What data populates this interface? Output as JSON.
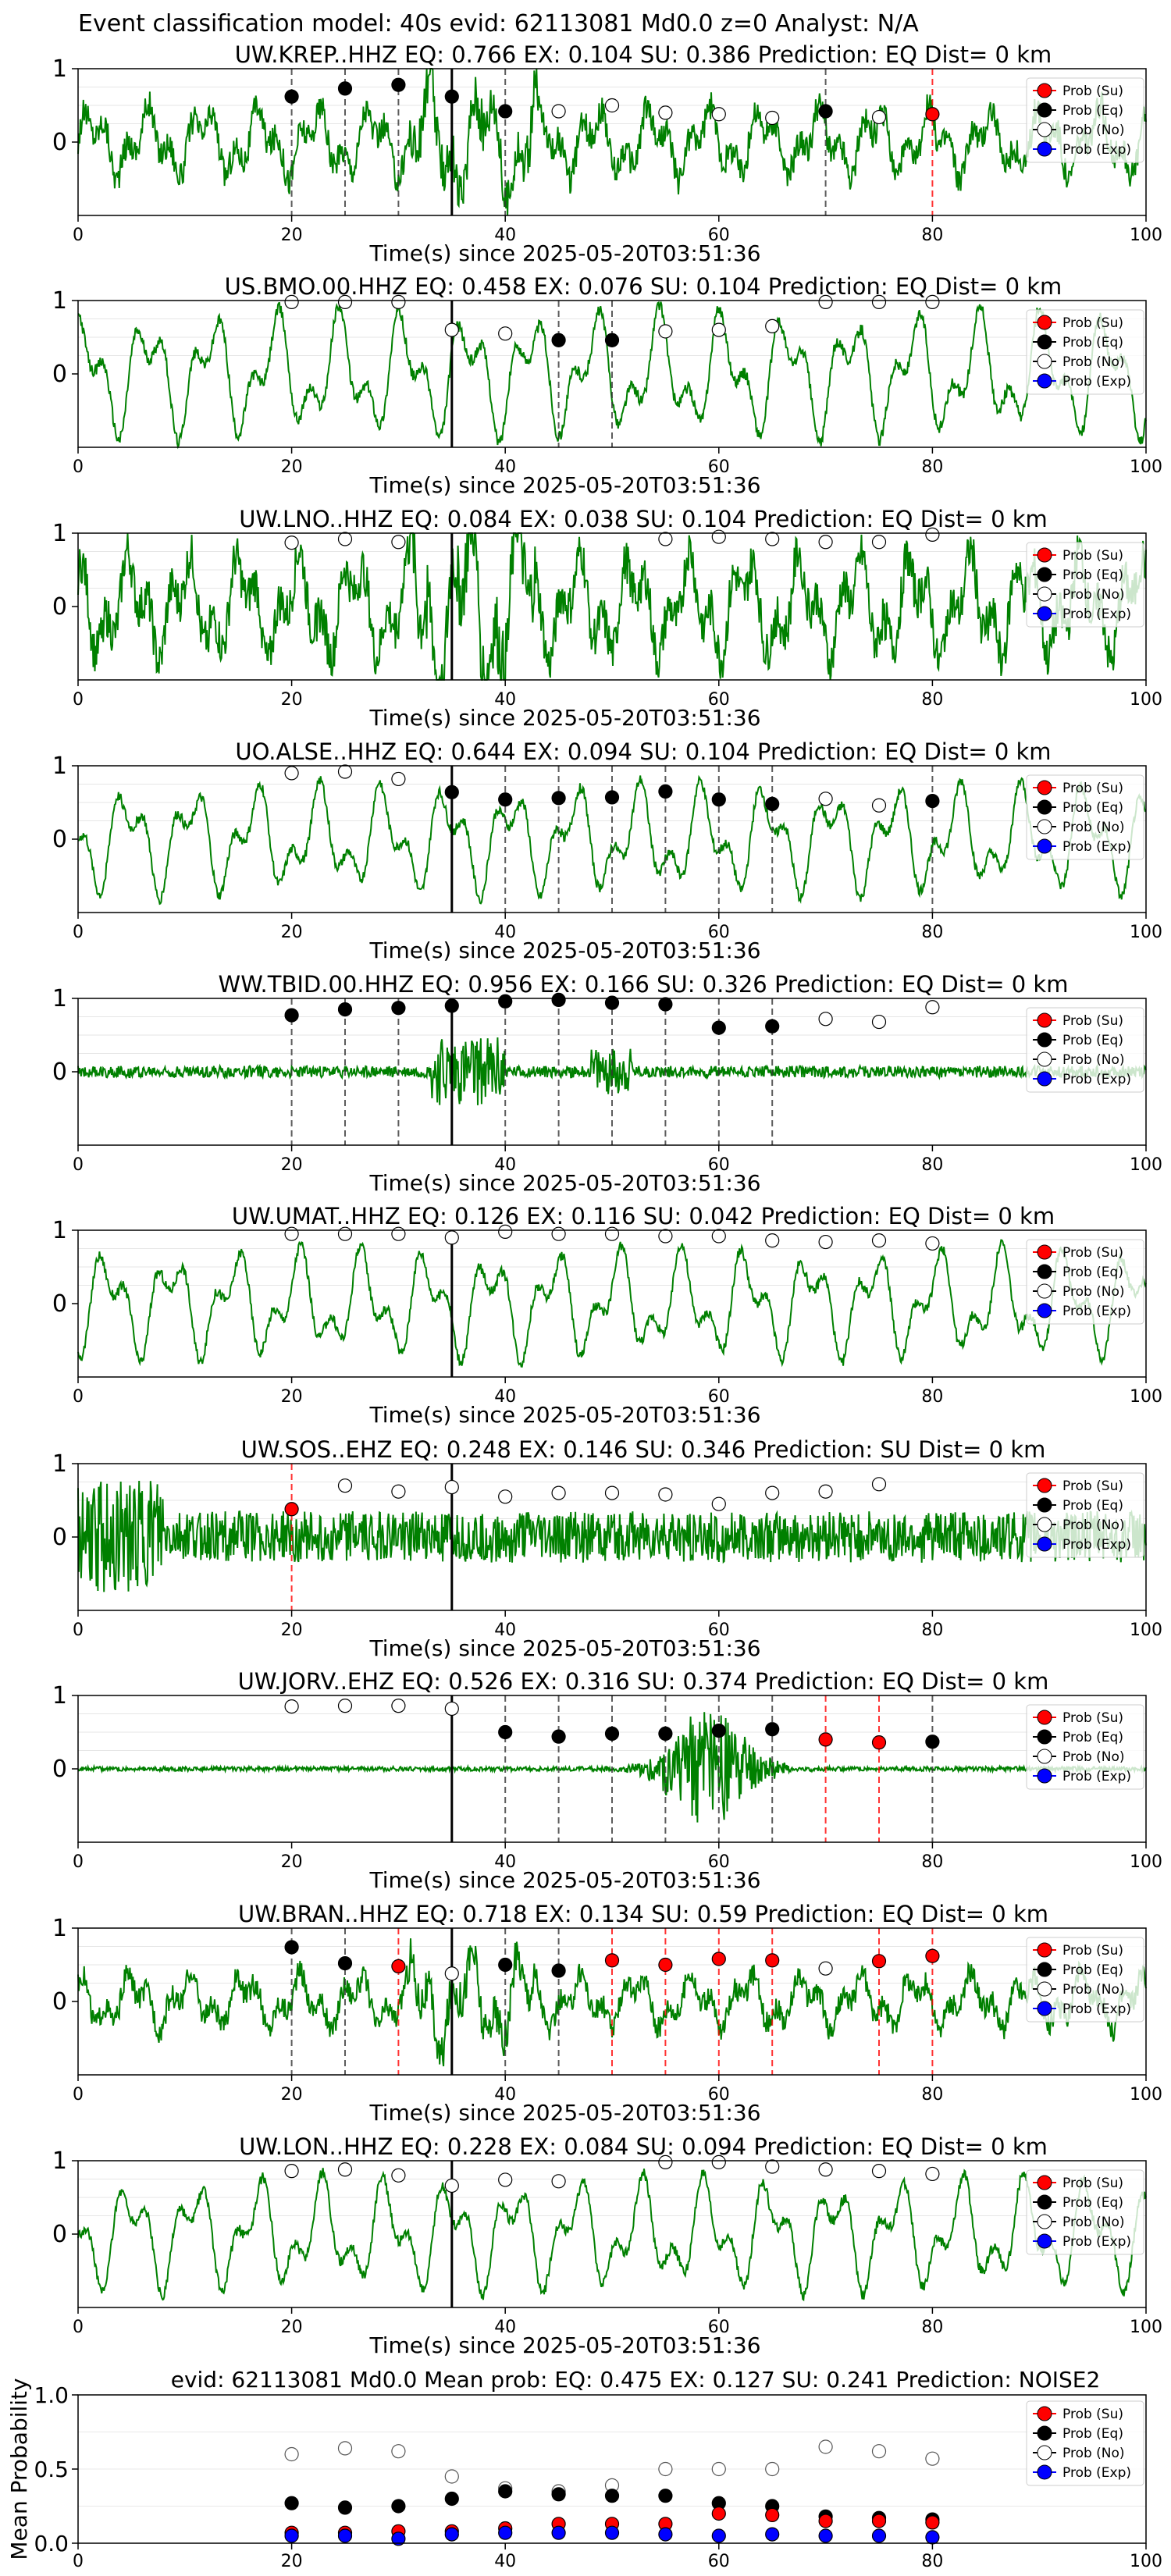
{
  "figure": {
    "title": "Event classification model: 40s evid: 62113081 Md0.0 z=0 Analyst: N/A",
    "legend_labels": [
      "Prob (Su)",
      "Prob (Eq)",
      "Prob (No)",
      "Prob (Exp)"
    ],
    "colors": {
      "su": "#ff0000",
      "eq": "#000000",
      "no": "#ffffff",
      "exp": "#0000ff",
      "wave": "#008000",
      "pick": "#000000"
    }
  },
  "chart_data": [
    {
      "type": "line",
      "title": "UW.KREP..HHZ   EQ: 0.766  EX: 0.104  SU: 0.386   Prediction: EQ    Dist= 0 km",
      "xlabel": "Time(s) since 2025-05-20T03:51:36",
      "xlim": [
        0,
        100
      ],
      "ylim": [
        -1,
        1
      ],
      "yticks": [
        "1",
        "0"
      ],
      "xticks": [
        "0",
        "20",
        "40",
        "60",
        "80",
        "100"
      ],
      "pick_time": 35,
      "wave_style": "mixed",
      "amp": 0.5,
      "points": [
        {
          "t": 20,
          "c": "Eq",
          "p": 0.62
        },
        {
          "t": 25,
          "c": "Eq",
          "p": 0.73
        },
        {
          "t": 30,
          "c": "Eq",
          "p": 0.78
        },
        {
          "t": 35,
          "c": "Eq",
          "p": 0.62
        },
        {
          "t": 40,
          "c": "Eq",
          "p": 0.42
        },
        {
          "t": 45,
          "c": "No",
          "p": 0.42
        },
        {
          "t": 50,
          "c": "No",
          "p": 0.5
        },
        {
          "t": 55,
          "c": "No",
          "p": 0.4
        },
        {
          "t": 60,
          "c": "No",
          "p": 0.38
        },
        {
          "t": 65,
          "c": "No",
          "p": 0.33
        },
        {
          "t": 70,
          "c": "Eq",
          "p": 0.42
        },
        {
          "t": 75,
          "c": "No",
          "p": 0.34
        },
        {
          "t": 80,
          "c": "Su",
          "p": 0.38
        }
      ]
    },
    {
      "type": "line",
      "title": "US.BMO.00.HHZ   EQ: 0.458  EX: 0.076  SU: 0.104   Prediction: EQ    Dist= 0 km",
      "xlabel": "Time(s) since 2025-05-20T03:51:36",
      "xlim": [
        0,
        100
      ],
      "ylim": [
        -1,
        1
      ],
      "yticks": [
        "1",
        "0"
      ],
      "xticks": [
        "0",
        "20",
        "40",
        "60",
        "80",
        "100"
      ],
      "pick_time": 35,
      "wave_style": "smooth",
      "amp": 0.8,
      "points": [
        {
          "t": 20,
          "c": "No",
          "p": 0.98
        },
        {
          "t": 25,
          "c": "No",
          "p": 0.98
        },
        {
          "t": 30,
          "c": "No",
          "p": 0.98
        },
        {
          "t": 35,
          "c": "No",
          "p": 0.6
        },
        {
          "t": 40,
          "c": "No",
          "p": 0.55
        },
        {
          "t": 45,
          "c": "Eq",
          "p": 0.46
        },
        {
          "t": 50,
          "c": "Eq",
          "p": 0.46
        },
        {
          "t": 55,
          "c": "No",
          "p": 0.58
        },
        {
          "t": 60,
          "c": "No",
          "p": 0.6
        },
        {
          "t": 65,
          "c": "No",
          "p": 0.65
        },
        {
          "t": 70,
          "c": "No",
          "p": 0.98
        },
        {
          "t": 75,
          "c": "No",
          "p": 0.98
        },
        {
          "t": 80,
          "c": "No",
          "p": 0.98
        }
      ]
    },
    {
      "type": "line",
      "title": "UW.LNO..HHZ   EQ: 0.084  EX: 0.038  SU: 0.104   Prediction: EQ    Dist= 0 km",
      "xlabel": "Time(s) since 2025-05-20T03:51:36",
      "xlim": [
        0,
        100
      ],
      "ylim": [
        -1,
        1
      ],
      "yticks": [
        "1",
        "0"
      ],
      "xticks": [
        "0",
        "20",
        "40",
        "60",
        "80",
        "100"
      ],
      "pick_time": 35,
      "wave_style": "mixed",
      "amp": 0.75,
      "points": [
        {
          "t": 20,
          "c": "No",
          "p": 0.87
        },
        {
          "t": 25,
          "c": "No",
          "p": 0.92
        },
        {
          "t": 30,
          "c": "No",
          "p": 0.88
        },
        {
          "t": 55,
          "c": "No",
          "p": 0.92
        },
        {
          "t": 60,
          "c": "No",
          "p": 0.95
        },
        {
          "t": 65,
          "c": "No",
          "p": 0.92
        },
        {
          "t": 70,
          "c": "No",
          "p": 0.88
        },
        {
          "t": 75,
          "c": "No",
          "p": 0.88
        },
        {
          "t": 80,
          "c": "No",
          "p": 0.98
        }
      ]
    },
    {
      "type": "line",
      "title": "UO.ALSE..HHZ   EQ: 0.644  EX: 0.094  SU: 0.104   Prediction: EQ    Dist= 0 km",
      "xlabel": "Time(s) since 2025-05-20T03:51:36",
      "xlim": [
        0,
        100
      ],
      "ylim": [
        -1,
        1
      ],
      "yticks": [
        "1",
        "0"
      ],
      "xticks": [
        "0",
        "20",
        "40",
        "60",
        "80",
        "100"
      ],
      "pick_time": 35,
      "wave_style": "smooth",
      "amp": 0.7,
      "points": [
        {
          "t": 20,
          "c": "No",
          "p": 0.9
        },
        {
          "t": 25,
          "c": "No",
          "p": 0.92
        },
        {
          "t": 30,
          "c": "No",
          "p": 0.82
        },
        {
          "t": 35,
          "c": "Eq",
          "p": 0.64
        },
        {
          "t": 40,
          "c": "Eq",
          "p": 0.54
        },
        {
          "t": 45,
          "c": "Eq",
          "p": 0.56
        },
        {
          "t": 50,
          "c": "Eq",
          "p": 0.57
        },
        {
          "t": 55,
          "c": "Eq",
          "p": 0.65
        },
        {
          "t": 60,
          "c": "Eq",
          "p": 0.54
        },
        {
          "t": 65,
          "c": "Eq",
          "p": 0.48
        },
        {
          "t": 70,
          "c": "No",
          "p": 0.55
        },
        {
          "t": 75,
          "c": "No",
          "p": 0.46
        },
        {
          "t": 80,
          "c": "Eq",
          "p": 0.52
        }
      ]
    },
    {
      "type": "line",
      "title": "WW.TBID.00.HHZ   EQ: 0.956  EX: 0.166  SU: 0.326   Prediction: EQ    Dist= 0 km",
      "xlabel": "Time(s) since 2025-05-20T03:51:36",
      "xlim": [
        0,
        100
      ],
      "ylim": [
        -1,
        1
      ],
      "yticks": [
        "1",
        "0"
      ],
      "xticks": [
        "0",
        "20",
        "40",
        "60",
        "80",
        "100"
      ],
      "pick_time": 35,
      "wave_style": "quiet",
      "amp": 0.08,
      "points": [
        {
          "t": 20,
          "c": "Eq",
          "p": 0.77
        },
        {
          "t": 25,
          "c": "Eq",
          "p": 0.85
        },
        {
          "t": 30,
          "c": "Eq",
          "p": 0.87
        },
        {
          "t": 35,
          "c": "Eq",
          "p": 0.9
        },
        {
          "t": 40,
          "c": "Eq",
          "p": 0.96
        },
        {
          "t": 45,
          "c": "Eq",
          "p": 0.98
        },
        {
          "t": 50,
          "c": "Eq",
          "p": 0.94
        },
        {
          "t": 55,
          "c": "Eq",
          "p": 0.92
        },
        {
          "t": 60,
          "c": "Eq",
          "p": 0.6
        },
        {
          "t": 65,
          "c": "Eq",
          "p": 0.62
        },
        {
          "t": 70,
          "c": "No",
          "p": 0.72
        },
        {
          "t": 75,
          "c": "No",
          "p": 0.68
        },
        {
          "t": 80,
          "c": "No",
          "p": 0.88
        }
      ]
    },
    {
      "type": "line",
      "title": "UW.UMAT..HHZ   EQ: 0.126  EX: 0.116  SU: 0.042   Prediction: EQ    Dist= 0 km",
      "xlabel": "Time(s) since 2025-05-20T03:51:36",
      "xlim": [
        0,
        100
      ],
      "ylim": [
        -1,
        1
      ],
      "yticks": [
        "1",
        "0"
      ],
      "xticks": [
        "0",
        "20",
        "40",
        "60",
        "80",
        "100"
      ],
      "pick_time": 35,
      "wave_style": "smooth",
      "amp": 0.7,
      "points": [
        {
          "t": 20,
          "c": "No",
          "p": 0.95
        },
        {
          "t": 25,
          "c": "No",
          "p": 0.95
        },
        {
          "t": 30,
          "c": "No",
          "p": 0.95
        },
        {
          "t": 35,
          "c": "No",
          "p": 0.9
        },
        {
          "t": 40,
          "c": "No",
          "p": 0.98
        },
        {
          "t": 45,
          "c": "No",
          "p": 0.95
        },
        {
          "t": 50,
          "c": "No",
          "p": 0.95
        },
        {
          "t": 55,
          "c": "No",
          "p": 0.92
        },
        {
          "t": 60,
          "c": "No",
          "p": 0.92
        },
        {
          "t": 65,
          "c": "No",
          "p": 0.86
        },
        {
          "t": 70,
          "c": "No",
          "p": 0.84
        },
        {
          "t": 75,
          "c": "No",
          "p": 0.86
        },
        {
          "t": 80,
          "c": "No",
          "p": 0.82
        }
      ]
    },
    {
      "type": "line",
      "title": "UW.SOS..EHZ   EQ: 0.248  EX: 0.146  SU: 0.346   Prediction: SU    Dist= 0 km",
      "xlabel": "Time(s) since 2025-05-20T03:51:36",
      "xlim": [
        0,
        100
      ],
      "ylim": [
        -1,
        1
      ],
      "yticks": [
        "1",
        "0"
      ],
      "xticks": [
        "0",
        "20",
        "40",
        "60",
        "80",
        "100"
      ],
      "pick_time": 35,
      "wave_style": "noise",
      "amp": 0.35,
      "points": [
        {
          "t": 20,
          "c": "Su",
          "p": 0.38
        },
        {
          "t": 25,
          "c": "No",
          "p": 0.7
        },
        {
          "t": 30,
          "c": "No",
          "p": 0.62
        },
        {
          "t": 35,
          "c": "No",
          "p": 0.68
        },
        {
          "t": 40,
          "c": "No",
          "p": 0.55
        },
        {
          "t": 45,
          "c": "No",
          "p": 0.6
        },
        {
          "t": 50,
          "c": "No",
          "p": 0.6
        },
        {
          "t": 55,
          "c": "No",
          "p": 0.58
        },
        {
          "t": 60,
          "c": "No",
          "p": 0.45
        },
        {
          "t": 65,
          "c": "No",
          "p": 0.6
        },
        {
          "t": 70,
          "c": "No",
          "p": 0.62
        },
        {
          "t": 75,
          "c": "No",
          "p": 0.72
        }
      ]
    },
    {
      "type": "line",
      "title": "UW.JORV..EHZ   EQ: 0.526  EX: 0.316  SU: 0.374   Prediction: EQ    Dist= 0 km",
      "xlabel": "Time(s) since 2025-05-20T03:51:36",
      "xlim": [
        0,
        100
      ],
      "ylim": [
        -1,
        1
      ],
      "yticks": [
        "1",
        "0"
      ],
      "xticks": [
        "0",
        "20",
        "40",
        "60",
        "80",
        "100"
      ],
      "pick_time": 35,
      "wave_style": "burst",
      "amp": 0.03,
      "points": [
        {
          "t": 20,
          "c": "No",
          "p": 0.85
        },
        {
          "t": 25,
          "c": "No",
          "p": 0.86
        },
        {
          "t": 30,
          "c": "No",
          "p": 0.86
        },
        {
          "t": 35,
          "c": "No",
          "p": 0.82
        },
        {
          "t": 40,
          "c": "Eq",
          "p": 0.5
        },
        {
          "t": 45,
          "c": "Eq",
          "p": 0.44
        },
        {
          "t": 50,
          "c": "Eq",
          "p": 0.48
        },
        {
          "t": 55,
          "c": "Eq",
          "p": 0.48
        },
        {
          "t": 60,
          "c": "Eq",
          "p": 0.52
        },
        {
          "t": 65,
          "c": "Eq",
          "p": 0.54
        },
        {
          "t": 70,
          "c": "Su",
          "p": 0.4
        },
        {
          "t": 75,
          "c": "Su",
          "p": 0.36
        },
        {
          "t": 80,
          "c": "Eq",
          "p": 0.37
        }
      ]
    },
    {
      "type": "line",
      "title": "UW.BRAN..HHZ   EQ: 0.718  EX: 0.134  SU: 0.59   Prediction: EQ    Dist= 0 km",
      "xlabel": "Time(s) since 2025-05-20T03:51:36",
      "xlim": [
        0,
        100
      ],
      "ylim": [
        -1,
        1
      ],
      "yticks": [
        "1",
        "0"
      ],
      "xticks": [
        "0",
        "20",
        "40",
        "60",
        "80",
        "100"
      ],
      "pick_time": 35,
      "wave_style": "mixed",
      "amp": 0.4,
      "points": [
        {
          "t": 20,
          "c": "Eq",
          "p": 0.74
        },
        {
          "t": 25,
          "c": "Eq",
          "p": 0.52
        },
        {
          "t": 30,
          "c": "Su",
          "p": 0.48
        },
        {
          "t": 35,
          "c": "No",
          "p": 0.38
        },
        {
          "t": 40,
          "c": "Eq",
          "p": 0.5
        },
        {
          "t": 45,
          "c": "Eq",
          "p": 0.42
        },
        {
          "t": 50,
          "c": "Su",
          "p": 0.56
        },
        {
          "t": 55,
          "c": "Su",
          "p": 0.5
        },
        {
          "t": 60,
          "c": "Su",
          "p": 0.58
        },
        {
          "t": 65,
          "c": "Su",
          "p": 0.56
        },
        {
          "t": 70,
          "c": "No",
          "p": 0.45
        },
        {
          "t": 75,
          "c": "Su",
          "p": 0.55
        },
        {
          "t": 80,
          "c": "Su",
          "p": 0.62
        }
      ]
    },
    {
      "type": "line",
      "title": "UW.LON..HHZ   EQ: 0.228  EX: 0.084  SU: 0.094   Prediction: EQ    Dist= 0 km",
      "xlabel": "Time(s) since 2025-05-20T03:51:36",
      "xlim": [
        0,
        100
      ],
      "ylim": [
        -1,
        1
      ],
      "yticks": [
        "1",
        "0"
      ],
      "xticks": [
        "0",
        "20",
        "40",
        "60",
        "80",
        "100"
      ],
      "pick_time": 35,
      "wave_style": "smooth",
      "amp": 0.72,
      "points": [
        {
          "t": 20,
          "c": "No",
          "p": 0.86
        },
        {
          "t": 25,
          "c": "No",
          "p": 0.88
        },
        {
          "t": 30,
          "c": "No",
          "p": 0.8
        },
        {
          "t": 35,
          "c": "No",
          "p": 0.66
        },
        {
          "t": 40,
          "c": "No",
          "p": 0.74
        },
        {
          "t": 45,
          "c": "No",
          "p": 0.72
        },
        {
          "t": 55,
          "c": "No",
          "p": 0.98
        },
        {
          "t": 60,
          "c": "No",
          "p": 0.98
        },
        {
          "t": 65,
          "c": "No",
          "p": 0.92
        },
        {
          "t": 70,
          "c": "No",
          "p": 0.88
        },
        {
          "t": 75,
          "c": "No",
          "p": 0.86
        },
        {
          "t": 80,
          "c": "No",
          "p": 0.82
        }
      ]
    },
    {
      "type": "scatter",
      "title": "evid: 62113081  Md0.0   Mean prob:   EQ: 0.475  EX: 0.127  SU: 0.241   Prediction: NOISE2",
      "xlabel": "",
      "ylabel": "Mean Probability",
      "xlim": [
        0,
        100
      ],
      "ylim": [
        0,
        1
      ],
      "yticks": [
        "1.0",
        "0.5",
        "0.0"
      ],
      "xticks": [
        "0",
        "20",
        "40",
        "60",
        "80",
        "100"
      ],
      "x": [
        20,
        25,
        30,
        35,
        40,
        45,
        50,
        55,
        60,
        65,
        70,
        75,
        80
      ],
      "series": [
        {
          "name": "Prob (No)",
          "values": [
            0.6,
            0.64,
            0.62,
            0.45,
            0.37,
            0.35,
            0.39,
            0.5,
            0.5,
            0.5,
            0.65,
            0.62,
            0.57
          ]
        },
        {
          "name": "Prob (Eq)",
          "values": [
            0.27,
            0.24,
            0.25,
            0.3,
            0.35,
            0.33,
            0.32,
            0.32,
            0.27,
            0.25,
            0.18,
            0.17,
            0.16
          ]
        },
        {
          "name": "Prob (Su)",
          "values": [
            0.07,
            0.07,
            0.08,
            0.08,
            0.1,
            0.13,
            0.13,
            0.13,
            0.2,
            0.19,
            0.15,
            0.15,
            0.14
          ]
        },
        {
          "name": "Prob (Exp)",
          "values": [
            0.05,
            0.05,
            0.03,
            0.06,
            0.07,
            0.07,
            0.07,
            0.06,
            0.05,
            0.06,
            0.05,
            0.05,
            0.04
          ]
        }
      ]
    }
  ]
}
